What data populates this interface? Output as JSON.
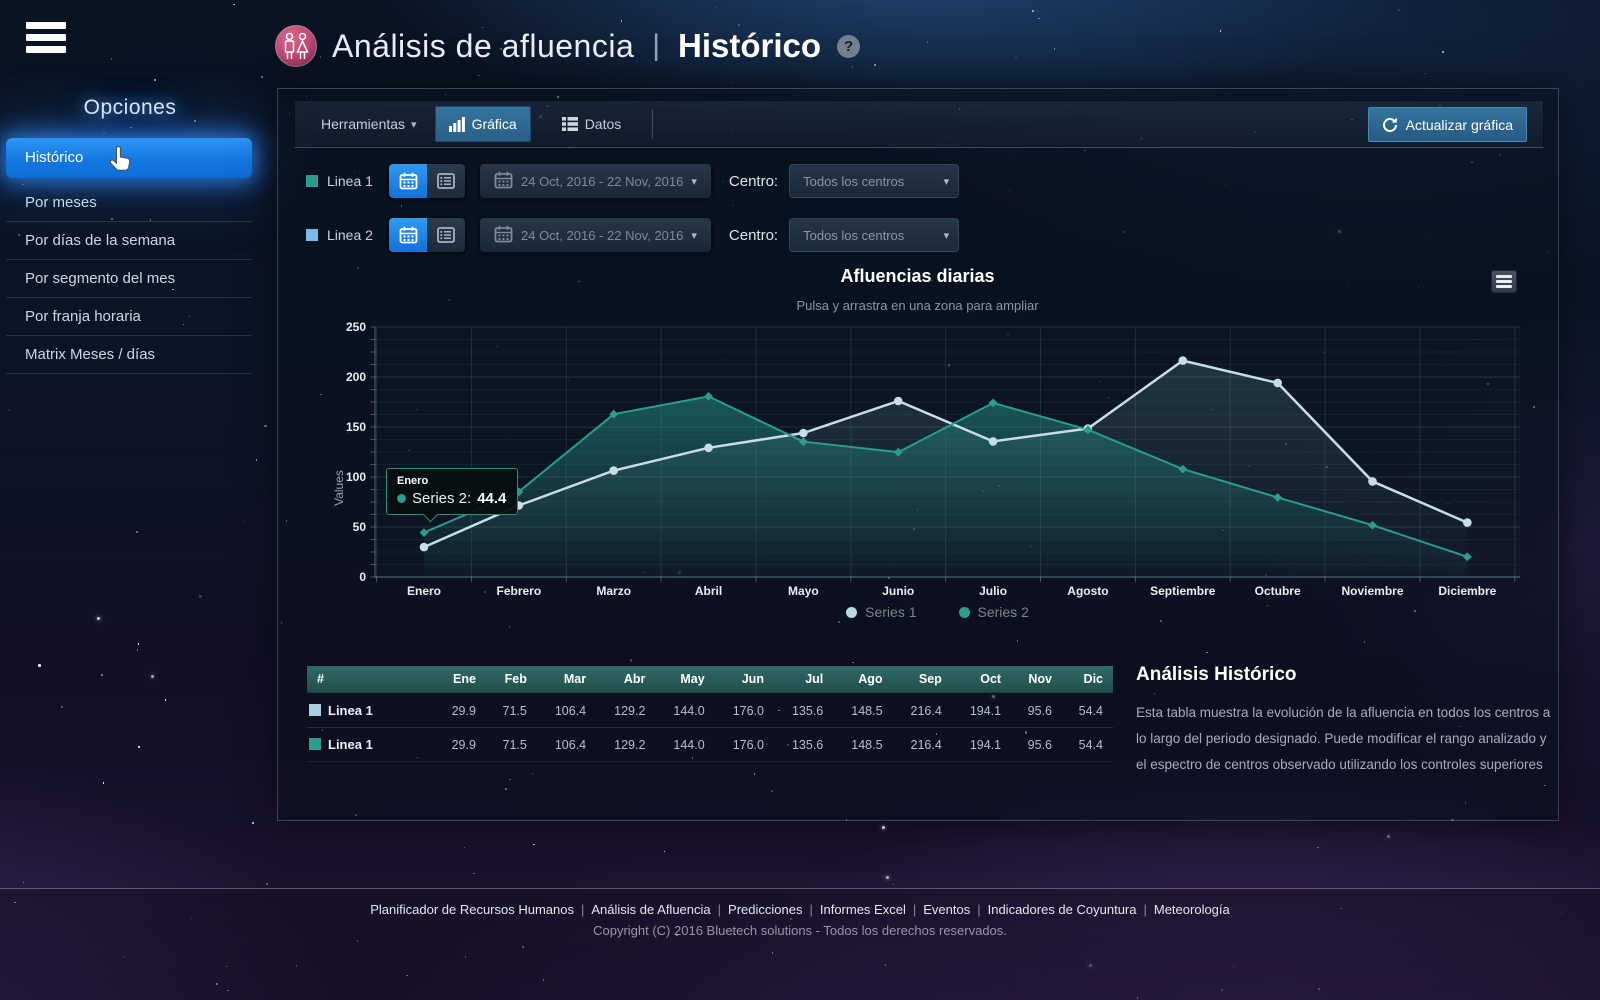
{
  "header": {
    "app_title": "Análisis de afluencia",
    "separator": "|",
    "page_title": "Histórico",
    "help": "?"
  },
  "sidebar": {
    "title": "Opciones",
    "items": [
      {
        "label": "Histórico",
        "active": true
      },
      {
        "label": "Por meses",
        "active": false
      },
      {
        "label": "Por días de la semana",
        "active": false
      },
      {
        "label": "Por segmento del mes",
        "active": false
      },
      {
        "label": "Por franja horaria",
        "active": false
      },
      {
        "label": "Matrix Meses / días",
        "active": false
      }
    ]
  },
  "toolbar": {
    "menu_label": "Herramientas",
    "tabs": [
      {
        "label": "Gráfica",
        "icon": "bar-chart-icon",
        "active": true
      },
      {
        "label": "Datos",
        "icon": "table-icon",
        "active": false
      }
    ],
    "refresh_label": "Actualizar gráfica"
  },
  "controls": {
    "centro_label": "Centro:",
    "centro_value": "Todos los centros",
    "rows": [
      {
        "label": "Linea 1",
        "swatch": "#2a9d90",
        "date_range": "24 Oct, 2016 - 22 Nov, 2016"
      },
      {
        "label": "Linea 2",
        "swatch": "#7db8ea",
        "date_range": "24 Oct, 2016 - 22 Nov, 2016"
      }
    ]
  },
  "chart_data": {
    "type": "line",
    "title": "Afluencias diarias",
    "subtitle": "Pulsa y arrastra en una zona para ampliar",
    "ylabel": "Values",
    "ylim": [
      0,
      250
    ],
    "yticks": [
      0,
      50,
      100,
      150,
      200,
      250
    ],
    "categories": [
      "Enero",
      "Febrero",
      "Marzo",
      "Abril",
      "Mayo",
      "Junio",
      "Julio",
      "Agosto",
      "Septiembre",
      "Octubre",
      "Noviembre",
      "Diciembre"
    ],
    "legend_position": "bottom-center",
    "grid": true,
    "series": [
      {
        "name": "Series 1",
        "color": "#c9dde9",
        "marker": "circle",
        "values": [
          29.9,
          71.5,
          106.4,
          129.2,
          144.0,
          176.0,
          135.6,
          148.5,
          216.4,
          194.1,
          95.6,
          54.4
        ]
      },
      {
        "name": "Series 2",
        "color": "#2a9d90",
        "marker": "diamond",
        "values": [
          44.4,
          85.2,
          162.8,
          180.6,
          135.3,
          124.8,
          174.1,
          147.3,
          107.9,
          79.6,
          51.8,
          20.2
        ]
      }
    ]
  },
  "chart_tooltip": {
    "category": "Enero",
    "series_label": "Series 2:",
    "value": "44.4"
  },
  "table": {
    "headers": [
      "#",
      "Ene",
      "Feb",
      "Mar",
      "Abr",
      "May",
      "Jun",
      "Jul",
      "Ago",
      "Sep",
      "Oct",
      "Nov",
      "Dic"
    ],
    "rows": [
      {
        "label": "Linea 1",
        "swatch": "#a9cfe2",
        "values": [
          "29.9",
          "71.5",
          "106.4",
          "129.2",
          "144.0",
          "176.0",
          "135.6",
          "148.5",
          "216.4",
          "194.1",
          "95.6",
          "54.4"
        ]
      },
      {
        "label": "Linea 1",
        "swatch": "#2a9d90",
        "values": [
          "29.9",
          "71.5",
          "106.4",
          "129.2",
          "144.0",
          "176.0",
          "135.6",
          "148.5",
          "216.4",
          "194.1",
          "95.6",
          "54.4"
        ]
      }
    ]
  },
  "info": {
    "title": "Análisis Histórico",
    "body": "Esta tabla muestra la evolución de la afluencia en todos los centros a lo largo del periodo designado. Puede modificar el rango analizado y el espectro de centros observado utilizando los controles superiores"
  },
  "footer": {
    "links": [
      "Planificador de Recursos Humanos",
      "Análisis de Afluencia",
      "Predicciones",
      "Informes Excel",
      "Eventos",
      "Indicadores de Coyuntura",
      "Meteorología"
    ],
    "copyright": "Copyright (C) 2016 Bluetech solutions - Todos los derechos reservados."
  },
  "colors": {
    "accent_blue": "#1d86ee",
    "steel_blue": "#2e6da4",
    "teal": "#2a9d90",
    "series1": "#c9dde9",
    "table_header": "#2a5f5d"
  }
}
